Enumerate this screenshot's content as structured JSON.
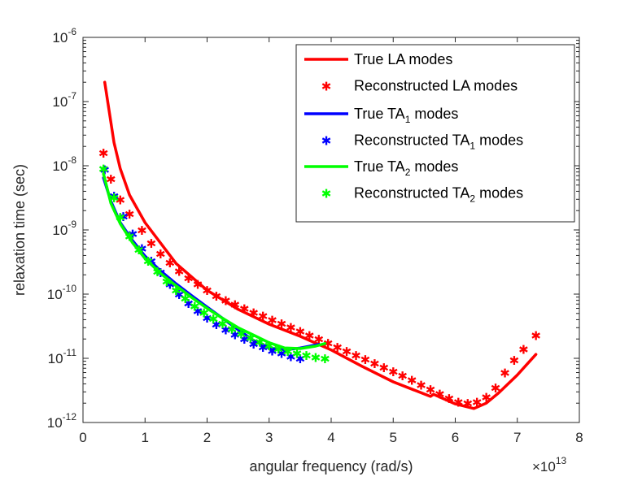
{
  "chart_data": {
    "type": "line",
    "title": "",
    "xlabel": "angular frequency (rad/s)",
    "ylabel": "relaxation time (sec)",
    "x_multiplier": "×10",
    "x_multiplier_exp": "13",
    "xlim": [
      0,
      8
    ],
    "ylim": [
      1e-12,
      1e-06
    ],
    "yscale": "log",
    "grid": false,
    "legend_position": "top-right",
    "x_ticks": [
      "0",
      "1",
      "2",
      "3",
      "4",
      "5",
      "6",
      "7",
      "8"
    ],
    "y_ticks": [
      {
        "base": "10",
        "exp": "-12"
      },
      {
        "base": "10",
        "exp": "-11"
      },
      {
        "base": "10",
        "exp": "-10"
      },
      {
        "base": "10",
        "exp": "-9"
      },
      {
        "base": "10",
        "exp": "-8"
      },
      {
        "base": "10",
        "exp": "-7"
      },
      {
        "base": "10",
        "exp": "-6"
      }
    ],
    "legend": [
      {
        "label": "True LA modes",
        "sub": "",
        "suffix": "",
        "kind": "line",
        "color": "#ff0000"
      },
      {
        "label": "Reconstructed LA modes",
        "sub": "",
        "suffix": "",
        "kind": "marker",
        "color": "#ff0000"
      },
      {
        "label": "True TA",
        "sub": "1",
        "suffix": " modes",
        "kind": "line",
        "color": "#0000ff"
      },
      {
        "label": "Reconstructed TA",
        "sub": "1",
        "suffix": " modes",
        "kind": "marker",
        "color": "#0000ff"
      },
      {
        "label": "True TA",
        "sub": "2",
        "suffix": " modes",
        "kind": "line",
        "color": "#00ff00"
      },
      {
        "label": "Reconstructed TA",
        "sub": "2",
        "suffix": " modes",
        "kind": "marker",
        "color": "#00ff00"
      }
    ],
    "series": [
      {
        "name": "True LA modes",
        "kind": "line",
        "color": "#ff0000",
        "x": [
          0.35,
          0.5,
          0.6,
          0.75,
          1.0,
          1.5,
          2.0,
          2.5,
          3.0,
          3.5,
          4.0,
          4.5,
          5.0,
          5.6,
          5.65,
          6.0,
          6.3,
          6.5,
          6.7,
          7.0,
          7.3
        ],
        "y": [
          2e-07,
          2.3e-08,
          9e-09,
          3.5e-09,
          1.3e-09,
          3e-10,
          1.15e-10,
          5.8e-11,
          3.4e-11,
          2.2e-11,
          1.35e-11,
          7.5e-12,
          4.3e-12,
          2.55e-12,
          2.75e-12,
          1.95e-12,
          1.65e-12,
          2e-12,
          2.9e-12,
          5.5e-12,
          1.15e-11
        ]
      },
      {
        "name": "Reconstructed LA modes",
        "kind": "marker",
        "color": "#ff0000",
        "x": [
          0.33,
          0.45,
          0.6,
          0.75,
          0.95,
          1.1,
          1.25,
          1.4,
          1.55,
          1.7,
          1.85,
          2.0,
          2.15,
          2.3,
          2.45,
          2.6,
          2.75,
          2.9,
          3.05,
          3.2,
          3.35,
          3.5,
          3.65,
          3.8,
          3.95,
          4.1,
          4.25,
          4.4,
          4.55,
          4.7,
          4.85,
          5.0,
          5.15,
          5.3,
          5.45,
          5.6,
          5.75,
          5.9,
          6.05,
          6.2,
          6.35,
          6.5,
          6.65,
          6.8,
          6.95,
          7.1,
          7.3
        ],
        "y": [
          1.6e-08,
          6.3e-09,
          3e-09,
          1.8e-09,
          1e-09,
          6.3e-10,
          4.3e-10,
          3.1e-10,
          2.3e-10,
          1.8e-10,
          1.45e-10,
          1.15e-10,
          9.5e-11,
          8e-11,
          6.9e-11,
          6e-11,
          5.2e-11,
          4.6e-11,
          4e-11,
          3.5e-11,
          3.05e-11,
          2.65e-11,
          2.3e-11,
          2e-11,
          1.75e-11,
          1.5e-11,
          1.3e-11,
          1.12e-11,
          9.7e-12,
          8.4e-12,
          7.3e-12,
          6.3e-12,
          5.4e-12,
          4.6e-12,
          3.9e-12,
          3.3e-12,
          2.8e-12,
          2.4e-12,
          2.1e-12,
          2e-12,
          2.1e-12,
          2.5e-12,
          3.5e-12,
          6e-12,
          9.5e-12,
          1.4e-11,
          2.3e-11
        ]
      },
      {
        "name": "True TA1 modes",
        "kind": "line",
        "color": "#0000ff",
        "x": [
          0.33,
          0.45,
          0.6,
          0.8,
          1.0,
          1.25,
          1.5,
          1.75,
          2.0,
          2.25,
          2.5,
          2.75,
          3.0,
          3.25,
          3.5,
          3.8
        ],
        "y": [
          6.5e-09,
          2.8e-09,
          1.3e-09,
          6.8e-10,
          3.9e-10,
          2.3e-10,
          1.45e-10,
          9.5e-11,
          6.3e-11,
          4.2e-11,
          2.8e-11,
          1.9e-11,
          1.45e-11,
          1.35e-11,
          1.45e-11,
          1.65e-11
        ]
      },
      {
        "name": "Reconstructed TA1 modes",
        "kind": "marker",
        "color": "#0000ff",
        "x": [
          0.35,
          0.5,
          0.65,
          0.8,
          0.95,
          1.1,
          1.25,
          1.4,
          1.55,
          1.7,
          1.85,
          2.0,
          2.15,
          2.3,
          2.45,
          2.6,
          2.75,
          2.9,
          3.05,
          3.2,
          3.35,
          3.5
        ],
        "y": [
          8.8e-09,
          3.4e-09,
          1.65e-09,
          8.8e-10,
          5.2e-10,
          3.3e-10,
          2.2e-10,
          1.45e-10,
          1e-10,
          7.3e-11,
          5.5e-11,
          4.3e-11,
          3.4e-11,
          2.8e-11,
          2.35e-11,
          2e-11,
          1.7e-11,
          1.5e-11,
          1.32e-11,
          1.2e-11,
          1.08e-11,
          1e-11
        ]
      },
      {
        "name": "True TA2 modes",
        "kind": "line",
        "color": "#00ff00",
        "x": [
          0.33,
          0.45,
          0.6,
          0.8,
          1.0,
          1.25,
          1.5,
          1.75,
          2.0,
          2.25,
          2.5,
          2.75,
          3.0,
          3.25,
          3.5,
          3.75,
          3.9
        ],
        "y": [
          7.5e-09,
          2.6e-09,
          1.25e-09,
          6.3e-10,
          3.6e-10,
          2.1e-10,
          1.35e-10,
          8.9e-11,
          6e-11,
          4.2e-11,
          3e-11,
          2.3e-11,
          1.75e-11,
          1.45e-11,
          1.42e-11,
          1.55e-11,
          1.7e-11
        ]
      },
      {
        "name": "Reconstructed TA2 modes",
        "kind": "marker",
        "color": "#00ff00",
        "x": [
          0.33,
          0.5,
          0.6,
          0.75,
          0.9,
          1.05,
          1.2,
          1.35,
          1.5,
          1.65,
          1.8,
          1.95,
          2.1,
          2.25,
          2.4,
          2.55,
          2.7,
          2.85,
          3.0,
          3.15,
          3.3,
          3.45,
          3.6,
          3.75,
          3.9
        ],
        "y": [
          9e-09,
          3.2e-09,
          1.6e-09,
          8e-10,
          5e-10,
          3.3e-10,
          2.25e-10,
          1.6e-10,
          1.15e-10,
          8.7e-11,
          6.6e-11,
          5.2e-11,
          4.2e-11,
          3.5e-11,
          2.9e-11,
          2.45e-11,
          2.1e-11,
          1.82e-11,
          1.6e-11,
          1.42e-11,
          1.3e-11,
          1.2e-11,
          1.12e-11,
          1.05e-11,
          1e-11
        ]
      }
    ]
  }
}
